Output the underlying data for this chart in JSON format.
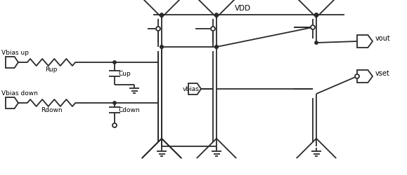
{
  "background": "#ffffff",
  "line_color": "#2a2a2a",
  "vdd": "VDD",
  "vout": "vout",
  "vset": "vset",
  "vbias": "vbias",
  "vbias_up": "Vbias up",
  "vbias_down": "Vbias down",
  "rup": "Rup",
  "rdown": "Rdown",
  "cup": "Cup",
  "cdown": "Cdown"
}
